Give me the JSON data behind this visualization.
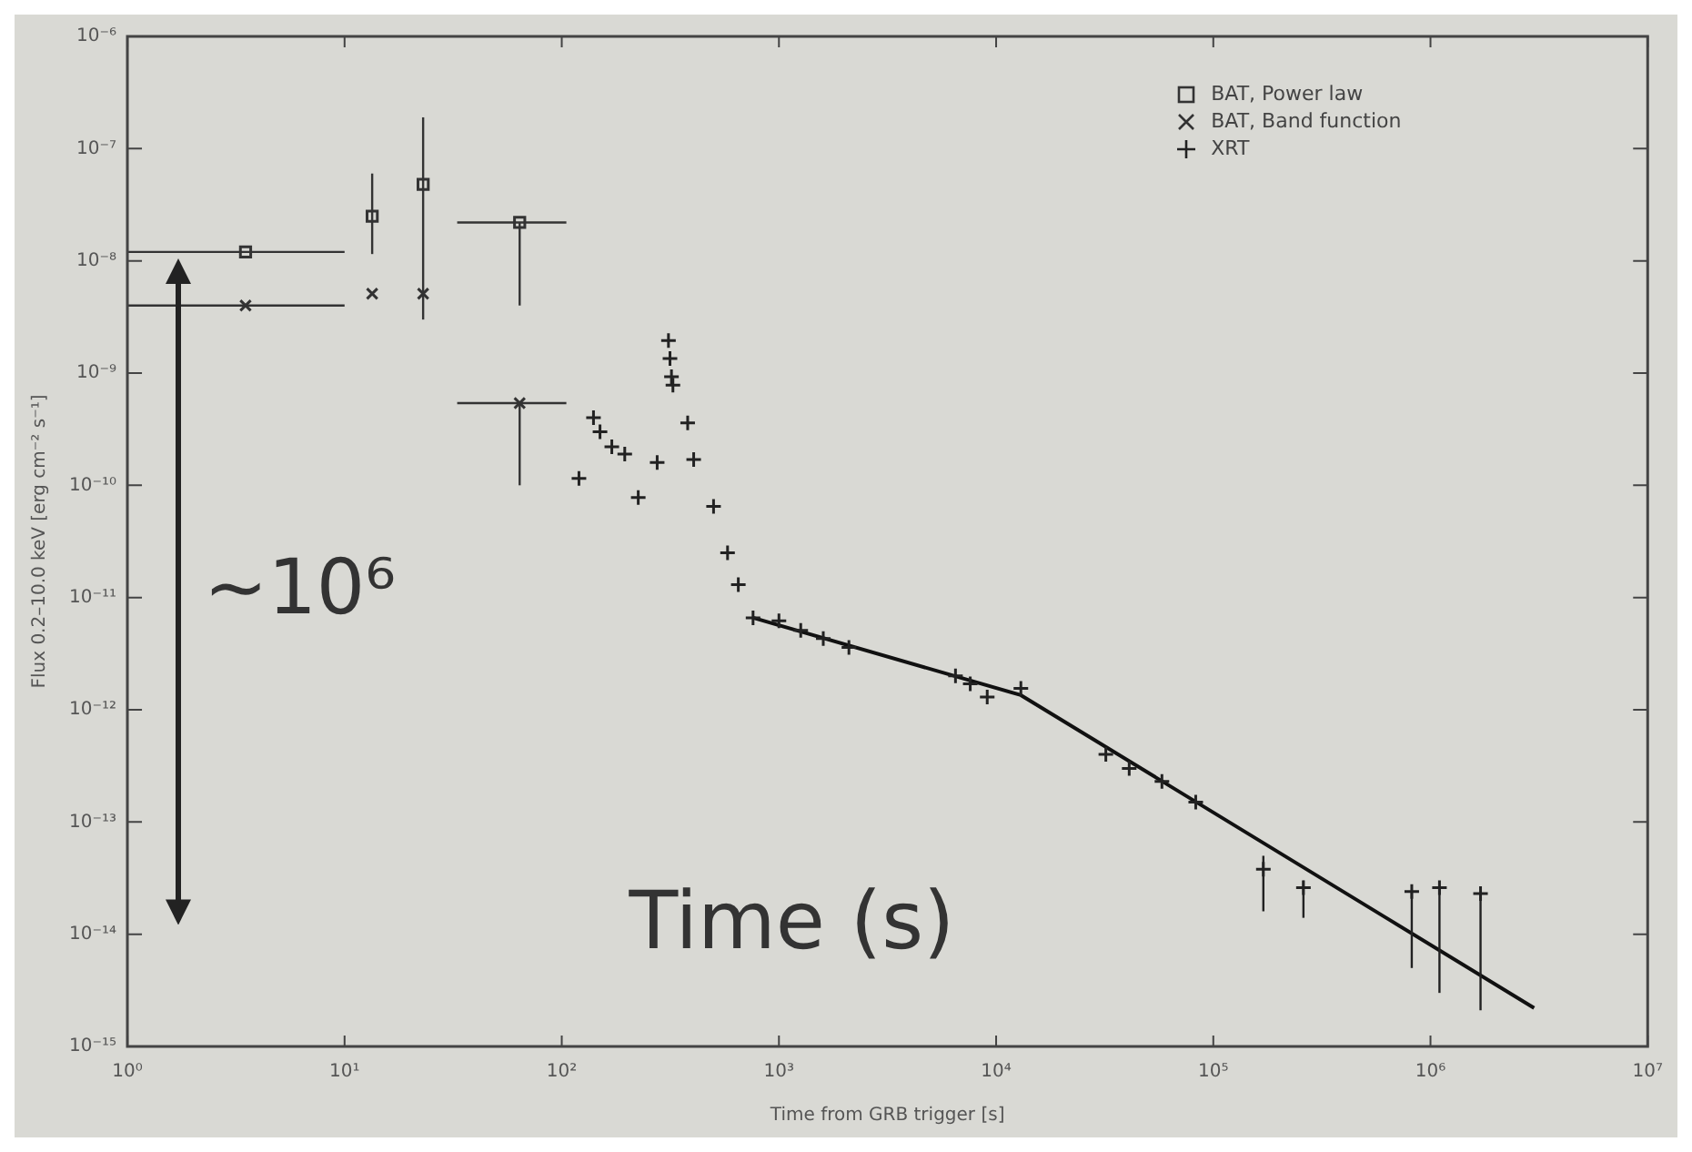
{
  "chart_data": {
    "type": "scatter",
    "xlabel": "Time from GRB trigger [s]",
    "ylabel": "Flux 0.2–10.0 keV [erg cm⁻² s⁻¹]",
    "log": "xy",
    "xlim": [
      1,
      10000000
    ],
    "ylim": [
      1e-15,
      1e-06
    ],
    "xticks": [
      {
        "value": 1,
        "label": "10⁰"
      },
      {
        "value": 10,
        "label": "10¹"
      },
      {
        "value": 100,
        "label": "10²"
      },
      {
        "value": 1000,
        "label": "10³"
      },
      {
        "value": 10000,
        "label": "10⁴"
      },
      {
        "value": 100000,
        "label": "10⁵"
      },
      {
        "value": 1000000,
        "label": "10⁶"
      },
      {
        "value": 10000000,
        "label": "10⁷"
      }
    ],
    "yticks": [
      {
        "value": 1e-15,
        "label": "10⁻¹⁵"
      },
      {
        "value": 1e-14,
        "label": "10⁻¹⁴"
      },
      {
        "value": 1e-13,
        "label": "10⁻¹³"
      },
      {
        "value": 1e-12,
        "label": "10⁻¹²"
      },
      {
        "value": 1e-11,
        "label": "10⁻¹¹"
      },
      {
        "value": 1e-10,
        "label": "10⁻¹⁰"
      },
      {
        "value": 1e-09,
        "label": "10⁻⁹"
      },
      {
        "value": 1e-08,
        "label": "10⁻⁸"
      },
      {
        "value": 1e-07,
        "label": "10⁻⁷"
      },
      {
        "value": 1e-06,
        "label": "10⁻⁶"
      }
    ],
    "grid": false,
    "legend": "top right",
    "annotations": [
      "~10⁶",
      "Time (s)"
    ],
    "series": [
      {
        "name": "BAT, Power law",
        "marker": "square",
        "color": "#333333",
        "x": [
          3.5,
          13.4,
          23,
          64
        ],
        "values": [
          1.2e-08,
          2.5e-08,
          4.8e-08,
          2.2e-08
        ],
        "errors": [
          null,
          [
            1.15e-08,
            6e-08
          ],
          [
            3e-09,
            1.9e-07
          ],
          [
            4e-09,
            2.2e-08
          ]
        ],
        "xerrors": [
          [
            1,
            10
          ],
          null,
          null,
          [
            33,
            105
          ]
        ]
      },
      {
        "name": "BAT, Band function",
        "marker": "x",
        "color": "#333333",
        "x": [
          3.5,
          13.4,
          23,
          64
        ],
        "values": [
          4e-09,
          5.1e-09,
          5.1e-09,
          5.4e-10
        ],
        "errors": [
          null,
          null,
          null,
          [
            1e-10,
            5.4e-10
          ]
        ],
        "xerrors": [
          [
            1,
            10
          ],
          null,
          null,
          [
            33,
            105
          ]
        ]
      },
      {
        "name": "XRT",
        "marker": "cross",
        "color": "#222222",
        "x": [
          120,
          140,
          150,
          170,
          195,
          225,
          275,
          310,
          315,
          320,
          325,
          380,
          405,
          500,
          580,
          650,
          760,
          1000,
          1260,
          1600,
          2100,
          6500,
          7600,
          9100,
          13000,
          32000,
          41000,
          58000,
          83000,
          170000,
          260000,
          820000,
          1100000,
          1700000
        ],
        "values": [
          1.15e-10,
          4e-10,
          3e-10,
          2.2e-10,
          1.9e-10,
          7.8e-11,
          1.6e-10,
          1.95e-09,
          1.35e-09,
          9.3e-10,
          7.8e-10,
          3.6e-10,
          1.7e-10,
          6.5e-11,
          2.5e-11,
          1.3e-11,
          6.6e-12,
          6.2e-12,
          5.1e-12,
          4.3e-12,
          3.6e-12,
          2e-12,
          1.7e-12,
          1.3e-12,
          1.55e-12,
          4e-13,
          3e-13,
          2.3e-13,
          1.5e-13,
          3.8e-14,
          2.6e-14,
          2.4e-14,
          2.6e-14,
          2.3e-14
        ],
        "errors": [
          null,
          null,
          null,
          null,
          null,
          null,
          null,
          null,
          null,
          null,
          null,
          null,
          null,
          null,
          null,
          null,
          null,
          null,
          null,
          null,
          null,
          null,
          null,
          null,
          null,
          null,
          null,
          null,
          null,
          [
            1.6e-14,
            5e-14
          ],
          [
            1.4e-14,
            3e-14
          ],
          [
            5e-15,
            2.4e-14
          ],
          [
            3e-15,
            2.6e-14
          ],
          [
            2.1e-15,
            2.3e-14
          ]
        ]
      },
      {
        "type": "line",
        "marker": "none",
        "color": "#111111",
        "x": [
          760,
          13000,
          3000000
        ],
        "values": [
          6.6e-12,
          1.35e-12,
          2.2e-15
        ]
      }
    ]
  }
}
